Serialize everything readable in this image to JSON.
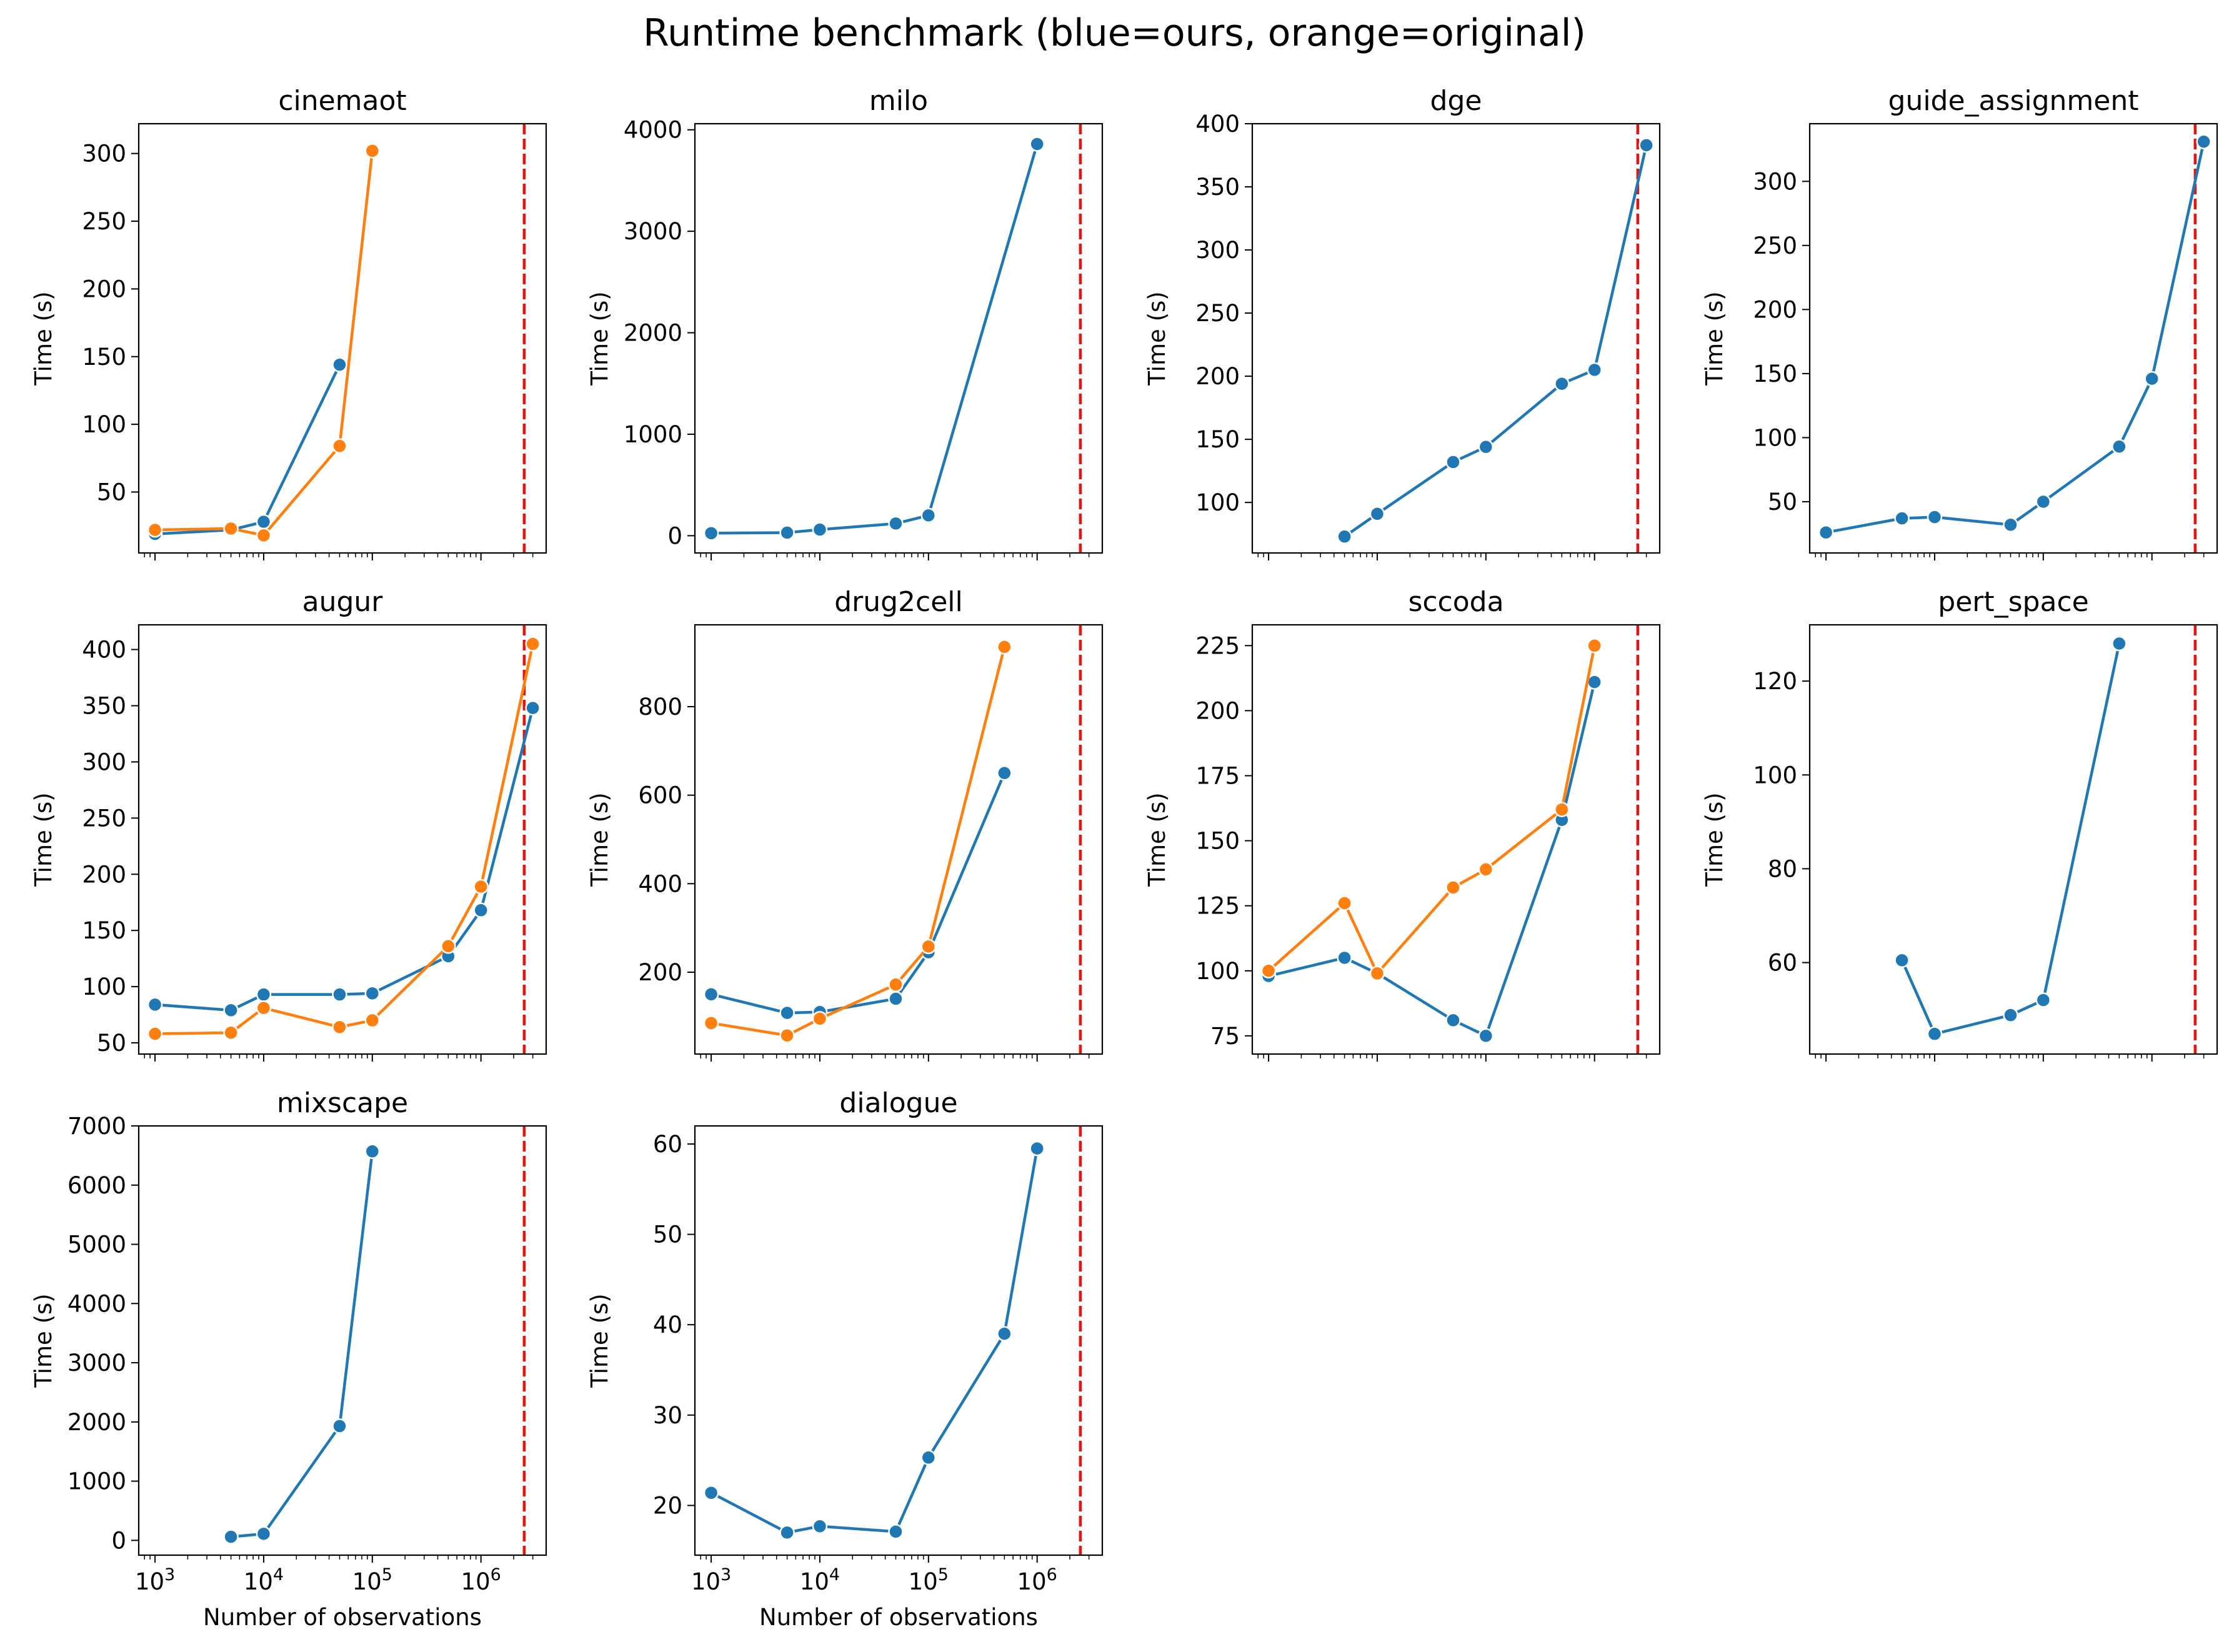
{
  "title": "Runtime benchmark (blue=ours, orange=original)",
  "colors": {
    "ours": "#1f77b4",
    "original": "#ff7f0e",
    "threshold": "#e8120c"
  },
  "x_scale": "log",
  "x_tick_labels": [
    "10^3",
    "10^4",
    "10^5",
    "10^6"
  ],
  "xlabel": "Number of observations",
  "ylabel": "Time (s)",
  "legend": "none",
  "chart_data": [
    {
      "type": "line",
      "title": "cinemaot",
      "ylabel": "Time (s)",
      "ylim": [
        5,
        322
      ],
      "yticks": [
        50,
        100,
        150,
        200,
        250,
        300
      ],
      "threshold_x": 2500000,
      "series": [
        {
          "color": "ours",
          "x": [
            1000,
            5000,
            10000,
            50000
          ],
          "y": [
            19,
            22,
            28,
            144
          ]
        },
        {
          "color": "original",
          "x": [
            1000,
            5000,
            10000,
            50000,
            100000
          ],
          "y": [
            22,
            23,
            18,
            84,
            302
          ]
        }
      ]
    },
    {
      "type": "line",
      "title": "milo",
      "ylabel": "Time (s)",
      "ylim": [
        -170,
        4060
      ],
      "yticks": [
        0,
        1000,
        2000,
        3000,
        4000
      ],
      "threshold_x": 2500000,
      "series": [
        {
          "color": "ours",
          "x": [
            1000,
            5000,
            10000,
            50000,
            100000,
            1000000
          ],
          "y": [
            25,
            30,
            60,
            120,
            200,
            3860
          ]
        }
      ]
    },
    {
      "type": "line",
      "title": "dge",
      "ylabel": "Time (s)",
      "ylim": [
        60,
        400
      ],
      "yticks": [
        100,
        150,
        200,
        250,
        300,
        350,
        400
      ],
      "threshold_x": 2500000,
      "series": [
        {
          "color": "ours",
          "x": [
            5000,
            10000,
            50000,
            100000,
            500000,
            1000000,
            3000000
          ],
          "y": [
            73,
            91,
            132,
            144,
            194,
            205,
            383
          ]
        }
      ]
    },
    {
      "type": "line",
      "title": "guide_assignment",
      "ylabel": "Time (s)",
      "ylim": [
        10,
        345
      ],
      "yticks": [
        50,
        100,
        150,
        200,
        250,
        300
      ],
      "threshold_x": 2500000,
      "series": [
        {
          "color": "ours",
          "x": [
            1000,
            5000,
            10000,
            50000,
            100000,
            500000,
            1000000,
            3000000
          ],
          "y": [
            26,
            37,
            38,
            32,
            50,
            93,
            146,
            331
          ]
        }
      ]
    },
    {
      "type": "line",
      "title": "augur",
      "ylabel": "Time (s)",
      "ylim": [
        40,
        422
      ],
      "yticks": [
        50,
        100,
        150,
        200,
        250,
        300,
        350,
        400
      ],
      "threshold_x": 2500000,
      "series": [
        {
          "color": "ours",
          "x": [
            1000,
            5000,
            10000,
            50000,
            100000,
            500000,
            1000000,
            3000000
          ],
          "y": [
            84,
            79,
            93,
            93,
            94,
            127,
            168,
            348
          ]
        },
        {
          "color": "original",
          "x": [
            1000,
            5000,
            10000,
            50000,
            100000,
            500000,
            1000000,
            3000000
          ],
          "y": [
            58,
            59,
            81,
            64,
            70,
            136,
            189,
            405
          ]
        }
      ]
    },
    {
      "type": "line",
      "title": "drug2cell",
      "ylabel": "Time (s)",
      "ylim": [
        15,
        985
      ],
      "yticks": [
        200,
        400,
        600,
        800
      ],
      "threshold_x": 2500000,
      "series": [
        {
          "color": "ours",
          "x": [
            1000,
            5000,
            10000,
            50000,
            100000,
            500000
          ],
          "y": [
            150,
            108,
            110,
            140,
            245,
            650
          ]
        },
        {
          "color": "original",
          "x": [
            1000,
            5000,
            10000,
            50000,
            100000,
            500000
          ],
          "y": [
            85,
            57,
            95,
            172,
            258,
            935
          ]
        }
      ]
    },
    {
      "type": "line",
      "title": "sccoda",
      "ylabel": "Time (s)",
      "ylim": [
        68,
        233
      ],
      "yticks": [
        75,
        100,
        125,
        150,
        175,
        200,
        225
      ],
      "threshold_x": 2500000,
      "series": [
        {
          "color": "ours",
          "x": [
            1000,
            5000,
            10000,
            50000,
            100000,
            500000,
            1000000
          ],
          "y": [
            98,
            105,
            99,
            81,
            75,
            158,
            211
          ]
        },
        {
          "color": "original",
          "x": [
            1000,
            5000,
            10000,
            50000,
            100000,
            500000,
            1000000
          ],
          "y": [
            100,
            126,
            99,
            132,
            139,
            162,
            225
          ]
        }
      ]
    },
    {
      "type": "line",
      "title": "pert_space",
      "ylabel": "Time (s)",
      "ylim": [
        40.5,
        132
      ],
      "yticks": [
        60,
        80,
        100,
        120
      ],
      "threshold_x": 2500000,
      "series": [
        {
          "color": "ours",
          "x": [
            5000,
            10000,
            50000,
            100000,
            500000
          ],
          "y": [
            60.5,
            44.8,
            48.8,
            52,
            128
          ]
        }
      ]
    },
    {
      "type": "line",
      "title": "mixscape",
      "ylabel": "Time (s)",
      "ylim": [
        -250,
        7000
      ],
      "yticks": [
        0,
        1000,
        2000,
        3000,
        4000,
        5000,
        6000,
        7000
      ],
      "threshold_x": 2500000,
      "show_xticklabels": true,
      "series": [
        {
          "color": "ours",
          "x": [
            5000,
            10000,
            50000,
            100000
          ],
          "y": [
            60,
            110,
            1930,
            6570
          ]
        }
      ]
    },
    {
      "type": "line",
      "title": "dialogue",
      "ylabel": "Time (s)",
      "ylim": [
        14.5,
        62
      ],
      "yticks": [
        20,
        30,
        40,
        50,
        60
      ],
      "threshold_x": 2500000,
      "show_xticklabels": true,
      "series": [
        {
          "color": "ours",
          "x": [
            1000,
            5000,
            10000,
            50000,
            100000,
            500000,
            1000000
          ],
          "y": [
            21.4,
            17.0,
            17.7,
            17.1,
            25.3,
            39.0,
            59.5
          ]
        }
      ]
    }
  ]
}
